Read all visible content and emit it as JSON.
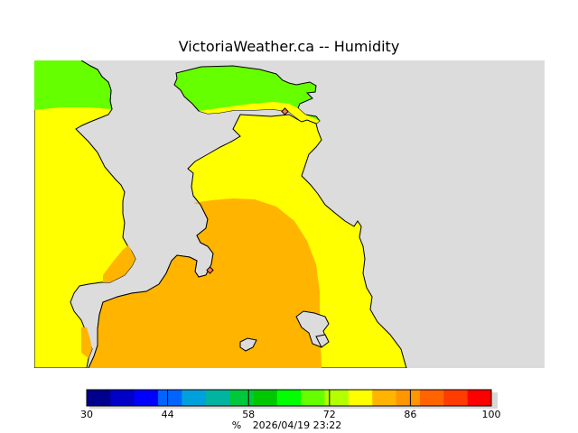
{
  "header": {
    "title": "VictoriaWeather.ca -- Humidity"
  },
  "colors": {
    "land_background": "#dcdcdc",
    "coast_outline": "#000000",
    "band_green": "#66ff00",
    "band_yellow": "#ffff00",
    "band_orange": "#ffb400",
    "marker_fill": "#ff7a4a"
  },
  "legend": {
    "unit": "%",
    "timestamp": "2026/04/19 23:22",
    "min": 30,
    "max": 100,
    "ticks": [
      30,
      44,
      58,
      72,
      86,
      100
    ],
    "colors": [
      "#00008c",
      "#0000c8",
      "#0000ff",
      "#0064ff",
      "#00a0dc",
      "#00b4a0",
      "#00c83c",
      "#00c800",
      "#00ff00",
      "#66ff00",
      "#b4ff00",
      "#ffff00",
      "#ffb400",
      "#ff9600",
      "#ff6400",
      "#ff3c00",
      "#ff0000"
    ]
  },
  "map_markers": [
    {
      "name": "station-north"
    },
    {
      "name": "station-victoria"
    }
  ]
}
